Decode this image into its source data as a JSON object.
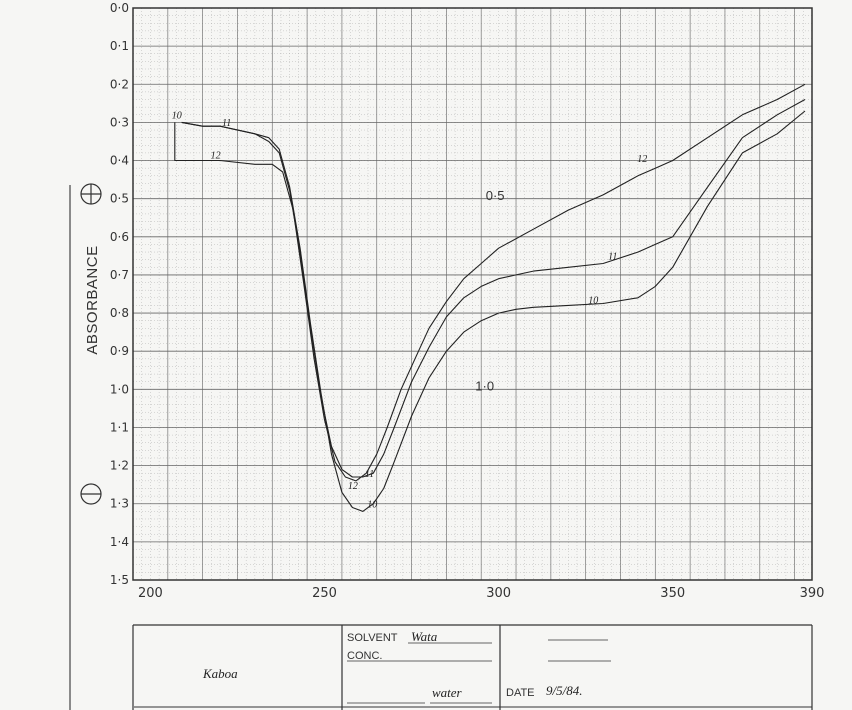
{
  "chart_data": {
    "type": "line",
    "xlabel": "",
    "ylabel": "ABSORBANCE",
    "xlim": [
      195,
      390
    ],
    "ylim": [
      0.0,
      1.5
    ],
    "y_inverted": true,
    "x_ticks": [
      "200",
      "250",
      "300",
      "350",
      "390"
    ],
    "y_ticks": [
      "0·0",
      "0·1",
      "0·2",
      "0·3",
      "0·4",
      "0·5",
      "0·6",
      "0·7",
      "0·8",
      "0·9",
      "1·0",
      "1·1",
      "1·2",
      "1·3",
      "1·4",
      "1·5"
    ],
    "grid": true,
    "annotations": [
      "0·5",
      "1·0"
    ],
    "series": [
      {
        "name": "10",
        "x": [
          209,
          215,
          220,
          230,
          234,
          237,
          240,
          243,
          246,
          249,
          252,
          255,
          258,
          261,
          264,
          267,
          270,
          275,
          280,
          285,
          290,
          295,
          300,
          305,
          310,
          320,
          330,
          340,
          345,
          350,
          360,
          370,
          380,
          388
        ],
        "y": [
          0.3,
          0.31,
          0.31,
          0.33,
          0.34,
          0.37,
          0.47,
          0.63,
          0.83,
          1.01,
          1.17,
          1.27,
          1.31,
          1.32,
          1.3,
          1.26,
          1.19,
          1.07,
          0.97,
          0.9,
          0.85,
          0.82,
          0.8,
          0.79,
          0.785,
          0.78,
          0.775,
          0.76,
          0.73,
          0.68,
          0.52,
          0.38,
          0.33,
          0.27
        ]
      },
      {
        "name": "11",
        "x": [
          209,
          215,
          220,
          230,
          234,
          237,
          240,
          243,
          246,
          249,
          252,
          255,
          258,
          261,
          264,
          267,
          270,
          275,
          280,
          285,
          290,
          295,
          300,
          305,
          310,
          320,
          330,
          340,
          345,
          350,
          360,
          370,
          380,
          388
        ],
        "y": [
          0.3,
          0.31,
          0.31,
          0.33,
          0.35,
          0.38,
          0.48,
          0.64,
          0.84,
          1.02,
          1.15,
          1.21,
          1.23,
          1.23,
          1.22,
          1.17,
          1.1,
          0.98,
          0.89,
          0.81,
          0.76,
          0.73,
          0.71,
          0.7,
          0.69,
          0.68,
          0.67,
          0.64,
          0.62,
          0.6,
          0.47,
          0.34,
          0.28,
          0.24
        ]
      },
      {
        "name": "12",
        "x": [
          207,
          207,
          215,
          220,
          230,
          235,
          238,
          241,
          244,
          247,
          250,
          253,
          256,
          259,
          262,
          265,
          268,
          272,
          276,
          280,
          285,
          290,
          295,
          300,
          310,
          320,
          330,
          340,
          345,
          350,
          360,
          370,
          380,
          388
        ],
        "y": [
          0.3,
          0.4,
          0.4,
          0.4,
          0.41,
          0.41,
          0.43,
          0.53,
          0.72,
          0.92,
          1.08,
          1.19,
          1.23,
          1.24,
          1.22,
          1.17,
          1.1,
          1.0,
          0.92,
          0.84,
          0.77,
          0.71,
          0.67,
          0.63,
          0.58,
          0.53,
          0.49,
          0.44,
          0.42,
          0.4,
          0.34,
          0.28,
          0.24,
          0.2
        ]
      }
    ]
  },
  "form": {
    "sample_name": "Kaboa",
    "solvent_label": "SOLVENT",
    "solvent_value": "Wata",
    "conc_label": "CONC.",
    "reference_value": "water",
    "date_label": "DATE",
    "date_value": "9/5/84."
  },
  "colors": {
    "grid": "#9a9a9a",
    "ink": "#222222",
    "paper": "#f6f6f4"
  },
  "icons": {
    "positive": "circled-plus-icon",
    "negative": "circled-minus-icon"
  }
}
